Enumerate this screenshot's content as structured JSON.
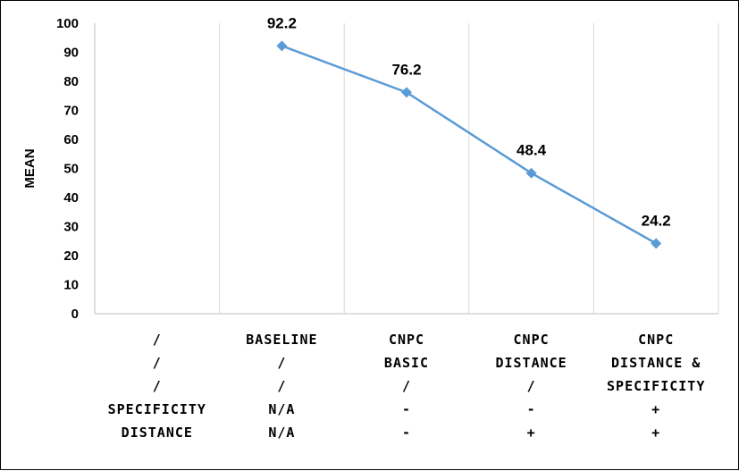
{
  "chart_data": {
    "type": "line",
    "title": "",
    "ylabel": "MEAN",
    "xlabel": "",
    "ylim": [
      0,
      100
    ],
    "yticks": [
      0,
      10,
      20,
      30,
      40,
      50,
      60,
      70,
      80,
      90,
      100
    ],
    "grid": "vertical",
    "legend": "none",
    "line_color": "#5b9bd5",
    "categories": [
      {
        "lines": [
          "/",
          "/",
          "/"
        ]
      },
      {
        "lines": [
          "BASELINE",
          "/",
          "/"
        ]
      },
      {
        "lines": [
          "CNPC",
          "BASIC",
          "/"
        ]
      },
      {
        "lines": [
          "CNPC",
          "DISTANCE",
          "/"
        ]
      },
      {
        "lines": [
          "CNPC",
          "DISTANCE &",
          "SPECIFICITY"
        ]
      }
    ],
    "row_labels": [
      "SPECIFICITY",
      "DISTANCE"
    ],
    "rows": [
      [
        "N/A",
        "-",
        "-",
        "+"
      ],
      [
        "N/A",
        "-",
        "+",
        "+"
      ]
    ],
    "series": [
      {
        "values": [
          null,
          92.2,
          76.2,
          48.4,
          24.2
        ],
        "labels": [
          "",
          "92.2",
          "76.2",
          "48.4",
          "24.2"
        ]
      }
    ]
  }
}
